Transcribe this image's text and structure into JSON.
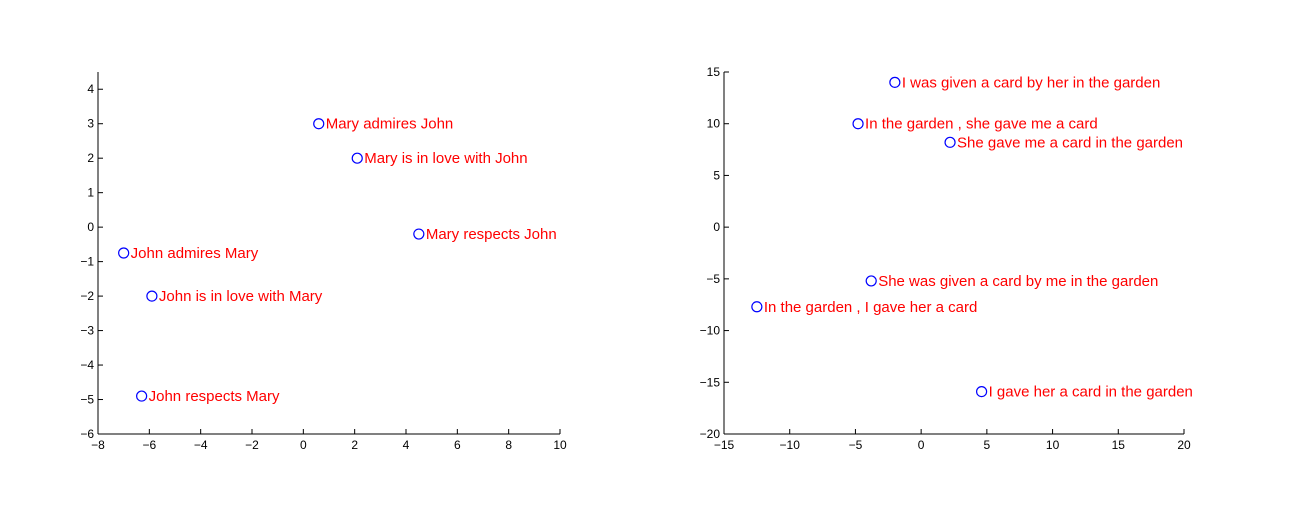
{
  "chart_data": [
    {
      "type": "scatter",
      "title": "",
      "xlabel": "",
      "ylabel": "",
      "xlim": [
        -8,
        10
      ],
      "ylim": [
        -6,
        4.5
      ],
      "xticks": [
        -8,
        -6,
        -4,
        -2,
        0,
        2,
        4,
        6,
        8,
        10
      ],
      "yticks": [
        -6,
        -5,
        -4,
        -3,
        -2,
        -1,
        0,
        1,
        2,
        3,
        4
      ],
      "grid": false,
      "marker_color": "#0000ff",
      "label_color": "#ff0000",
      "points": [
        {
          "x": 0.6,
          "y": 3.0,
          "label": "Mary admires John"
        },
        {
          "x": 2.1,
          "y": 2.0,
          "label": "Mary is in love with John"
        },
        {
          "x": 4.5,
          "y": -0.2,
          "label": "Mary respects John"
        },
        {
          "x": -7.0,
          "y": -0.75,
          "label": "John admires Mary"
        },
        {
          "x": -5.9,
          "y": -2.0,
          "label": "John is in love with Mary"
        },
        {
          "x": -6.3,
          "y": -4.9,
          "label": "John respects Mary"
        }
      ]
    },
    {
      "type": "scatter",
      "title": "",
      "xlabel": "",
      "ylabel": "",
      "xlim": [
        -15,
        20
      ],
      "ylim": [
        -20,
        15
      ],
      "xticks": [
        -15,
        -10,
        -5,
        0,
        5,
        10,
        15,
        20
      ],
      "yticks": [
        -20,
        -15,
        -10,
        -5,
        0,
        5,
        10,
        15
      ],
      "grid": false,
      "marker_color": "#0000ff",
      "label_color": "#ff0000",
      "points": [
        {
          "x": -2.0,
          "y": 14.0,
          "label": "I was given a card by her in the garden"
        },
        {
          "x": -4.8,
          "y": 10.0,
          "label": "In the garden , she gave me a card"
        },
        {
          "x": 2.2,
          "y": 8.2,
          "label": "She gave me a card in the garden"
        },
        {
          "x": -3.8,
          "y": -5.2,
          "label": "She was given a card by me in the garden"
        },
        {
          "x": -12.5,
          "y": -7.7,
          "label": "In the garden , I gave her a card"
        },
        {
          "x": 4.6,
          "y": -15.9,
          "label": "I gave her a card in the garden"
        }
      ]
    }
  ]
}
